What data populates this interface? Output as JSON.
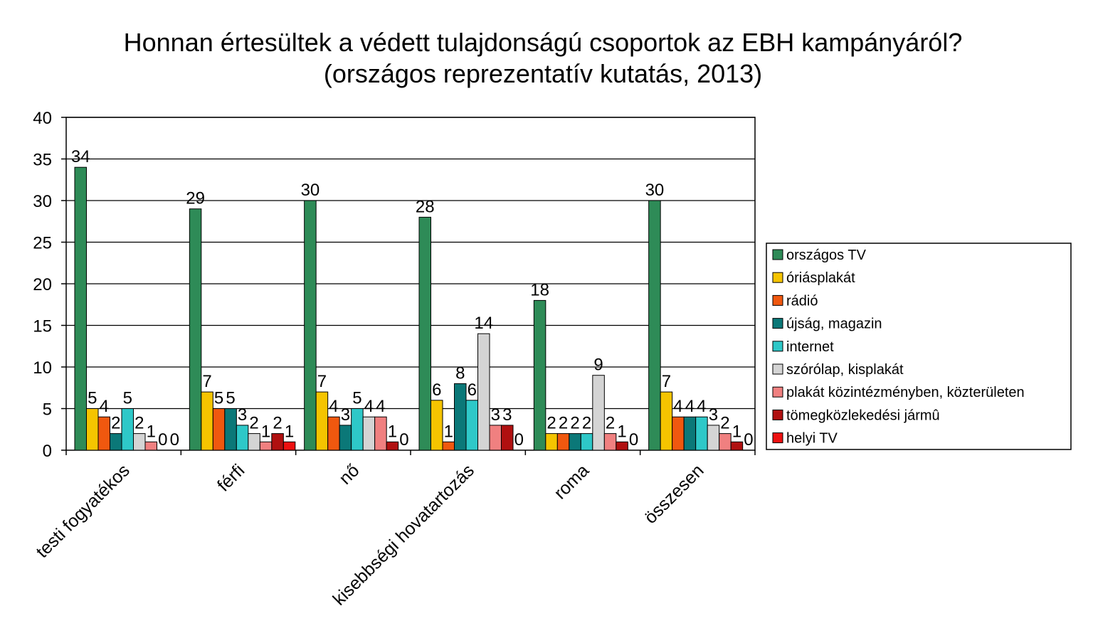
{
  "chart_data": {
    "type": "bar",
    "title": "Honnan értesültek a védett tulajdonságú csoportok az EBH kampányáról?",
    "subtitle": "(országos reprezentatív kutatás, 2013)",
    "xlabel": "",
    "ylabel": "",
    "ylim": [
      0,
      40
    ],
    "yticks": [
      "0",
      "5",
      "10",
      "15",
      "20",
      "25",
      "30",
      "35",
      "40"
    ],
    "grid": true,
    "legend_position": "right",
    "categories": [
      "testi fogyatékos",
      "férfi",
      "nő",
      "kisebbségi hovatartozás",
      "roma",
      "összesen"
    ],
    "series": [
      {
        "name": "országos TV",
        "color": "#2e8b57",
        "values": [
          34,
          29,
          30,
          28,
          18,
          30
        ]
      },
      {
        "name": "óriásplakát",
        "color": "#f5c400",
        "values": [
          5,
          7,
          7,
          6,
          2,
          7
        ]
      },
      {
        "name": "rádió",
        "color": "#f0580f",
        "values": [
          4,
          5,
          4,
          1,
          2,
          4
        ]
      },
      {
        "name": "újság, magazin",
        "color": "#0b7878",
        "values": [
          2,
          5,
          3,
          8,
          2,
          4
        ]
      },
      {
        "name": "internet",
        "color": "#2ec8c8",
        "values": [
          5,
          3,
          5,
          6,
          2,
          4
        ]
      },
      {
        "name": "szórólap, kisplakát",
        "color": "#d4d4d4",
        "values": [
          2,
          2,
          4,
          14,
          9,
          3
        ]
      },
      {
        "name": "plakát közintézményben, közterületen",
        "color": "#f08080",
        "values": [
          1,
          1,
          4,
          3,
          2,
          2
        ]
      },
      {
        "name": "tömegközlekedési jármû",
        "color": "#b01010",
        "values": [
          0,
          2,
          1,
          3,
          1,
          1
        ]
      },
      {
        "name": "helyi TV",
        "color": "#ee1111",
        "values": [
          0,
          1,
          0,
          0,
          0,
          0
        ]
      }
    ]
  }
}
